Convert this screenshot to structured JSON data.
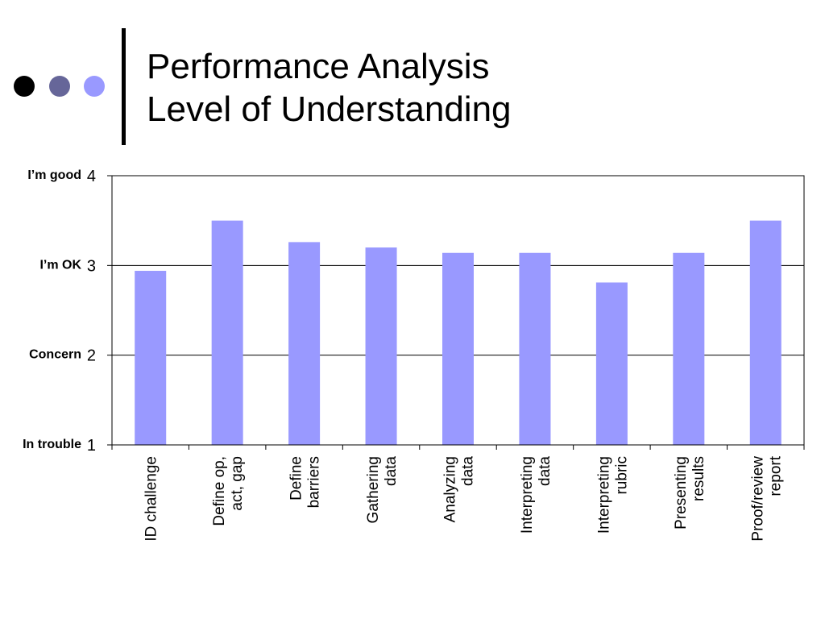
{
  "slide": {
    "title_line1": "Performance Analysis",
    "title_line2": "Level of Understanding",
    "dot_colors": [
      "#000000",
      "#666699",
      "#9999ff"
    ]
  },
  "chart_data": {
    "type": "bar",
    "title": "",
    "xlabel": "",
    "ylabel": "",
    "ylim": [
      1,
      4
    ],
    "grid": true,
    "categories": [
      [
        "ID challenge"
      ],
      [
        "Define op,",
        "act, gap"
      ],
      [
        "Define",
        "barriers"
      ],
      [
        "Gathering",
        "data"
      ],
      [
        "Analyzing",
        "data"
      ],
      [
        "Interpreting",
        "data"
      ],
      [
        "Interpreting",
        "rubric"
      ],
      [
        "Presenting",
        "results"
      ],
      [
        "Proof/review",
        "report"
      ]
    ],
    "values": [
      2.94,
      3.5,
      3.26,
      3.2,
      3.14,
      3.14,
      2.81,
      3.14,
      3.5
    ],
    "yticks": [
      "1",
      "2",
      "3",
      "4"
    ],
    "level_labels": [
      {
        "value": 4,
        "text": "I’m good"
      },
      {
        "value": 3,
        "text": "I’m OK"
      },
      {
        "value": 2,
        "text": "Concern"
      },
      {
        "value": 1,
        "text": "In trouble"
      }
    ],
    "bar_color": "#9999ff"
  }
}
